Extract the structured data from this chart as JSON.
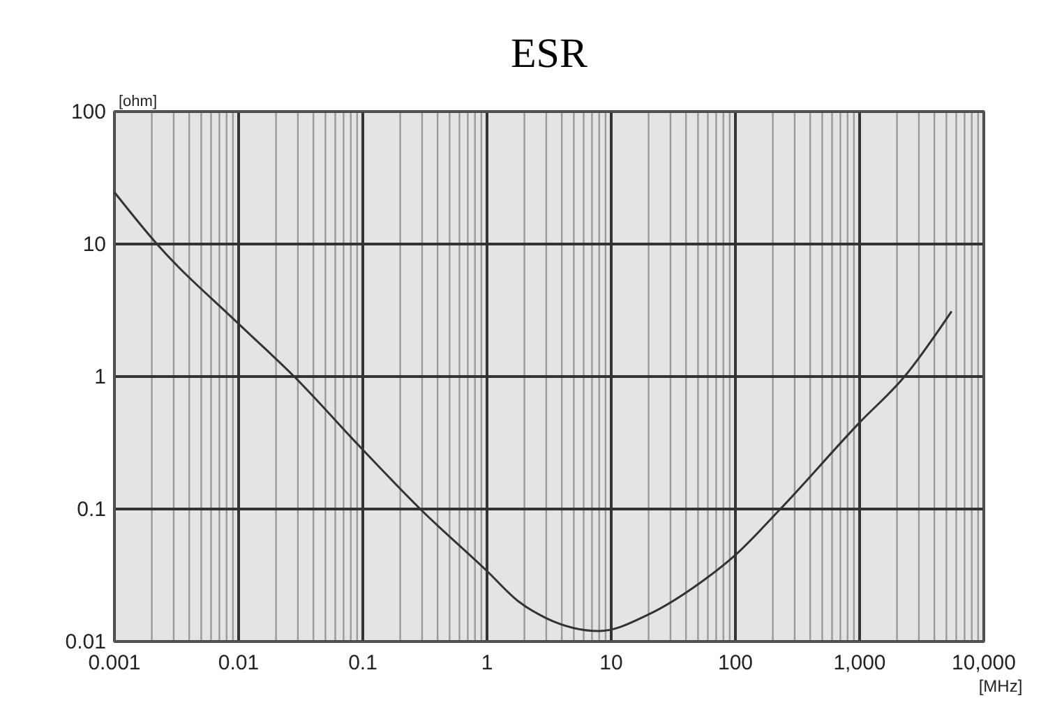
{
  "chart_data": {
    "type": "line",
    "title": "ESR",
    "xlabel": "[MHz]",
    "ylabel": "[ohm]",
    "log": "xy",
    "grid": true,
    "line_style": "solid",
    "xlim": [
      0.001,
      10000
    ],
    "ylim": [
      0.01,
      100
    ],
    "xticks": [
      0.001,
      0.01,
      0.1,
      1,
      10,
      100,
      {
        "value": 1000,
        "label": "1,000"
      },
      {
        "value": 10000,
        "label": "10,000"
      }
    ],
    "yticks": [
      0.01,
      0.1,
      1,
      10,
      100
    ],
    "series": [
      {
        "color": "#333333",
        "x": [
          0.001,
          0.0022,
          0.01,
          0.028,
          0.1,
          0.29,
          1,
          1.8,
          3,
          8,
          20,
          50,
          100,
          230,
          1000,
          2300,
          5500
        ],
        "values": [
          24.6,
          10,
          2.5,
          1,
          0.28,
          0.1,
          0.034,
          0.02,
          0.015,
          0.012,
          0.016,
          0.027,
          0.045,
          0.1,
          0.45,
          1,
          3.1
        ]
      }
    ]
  }
}
